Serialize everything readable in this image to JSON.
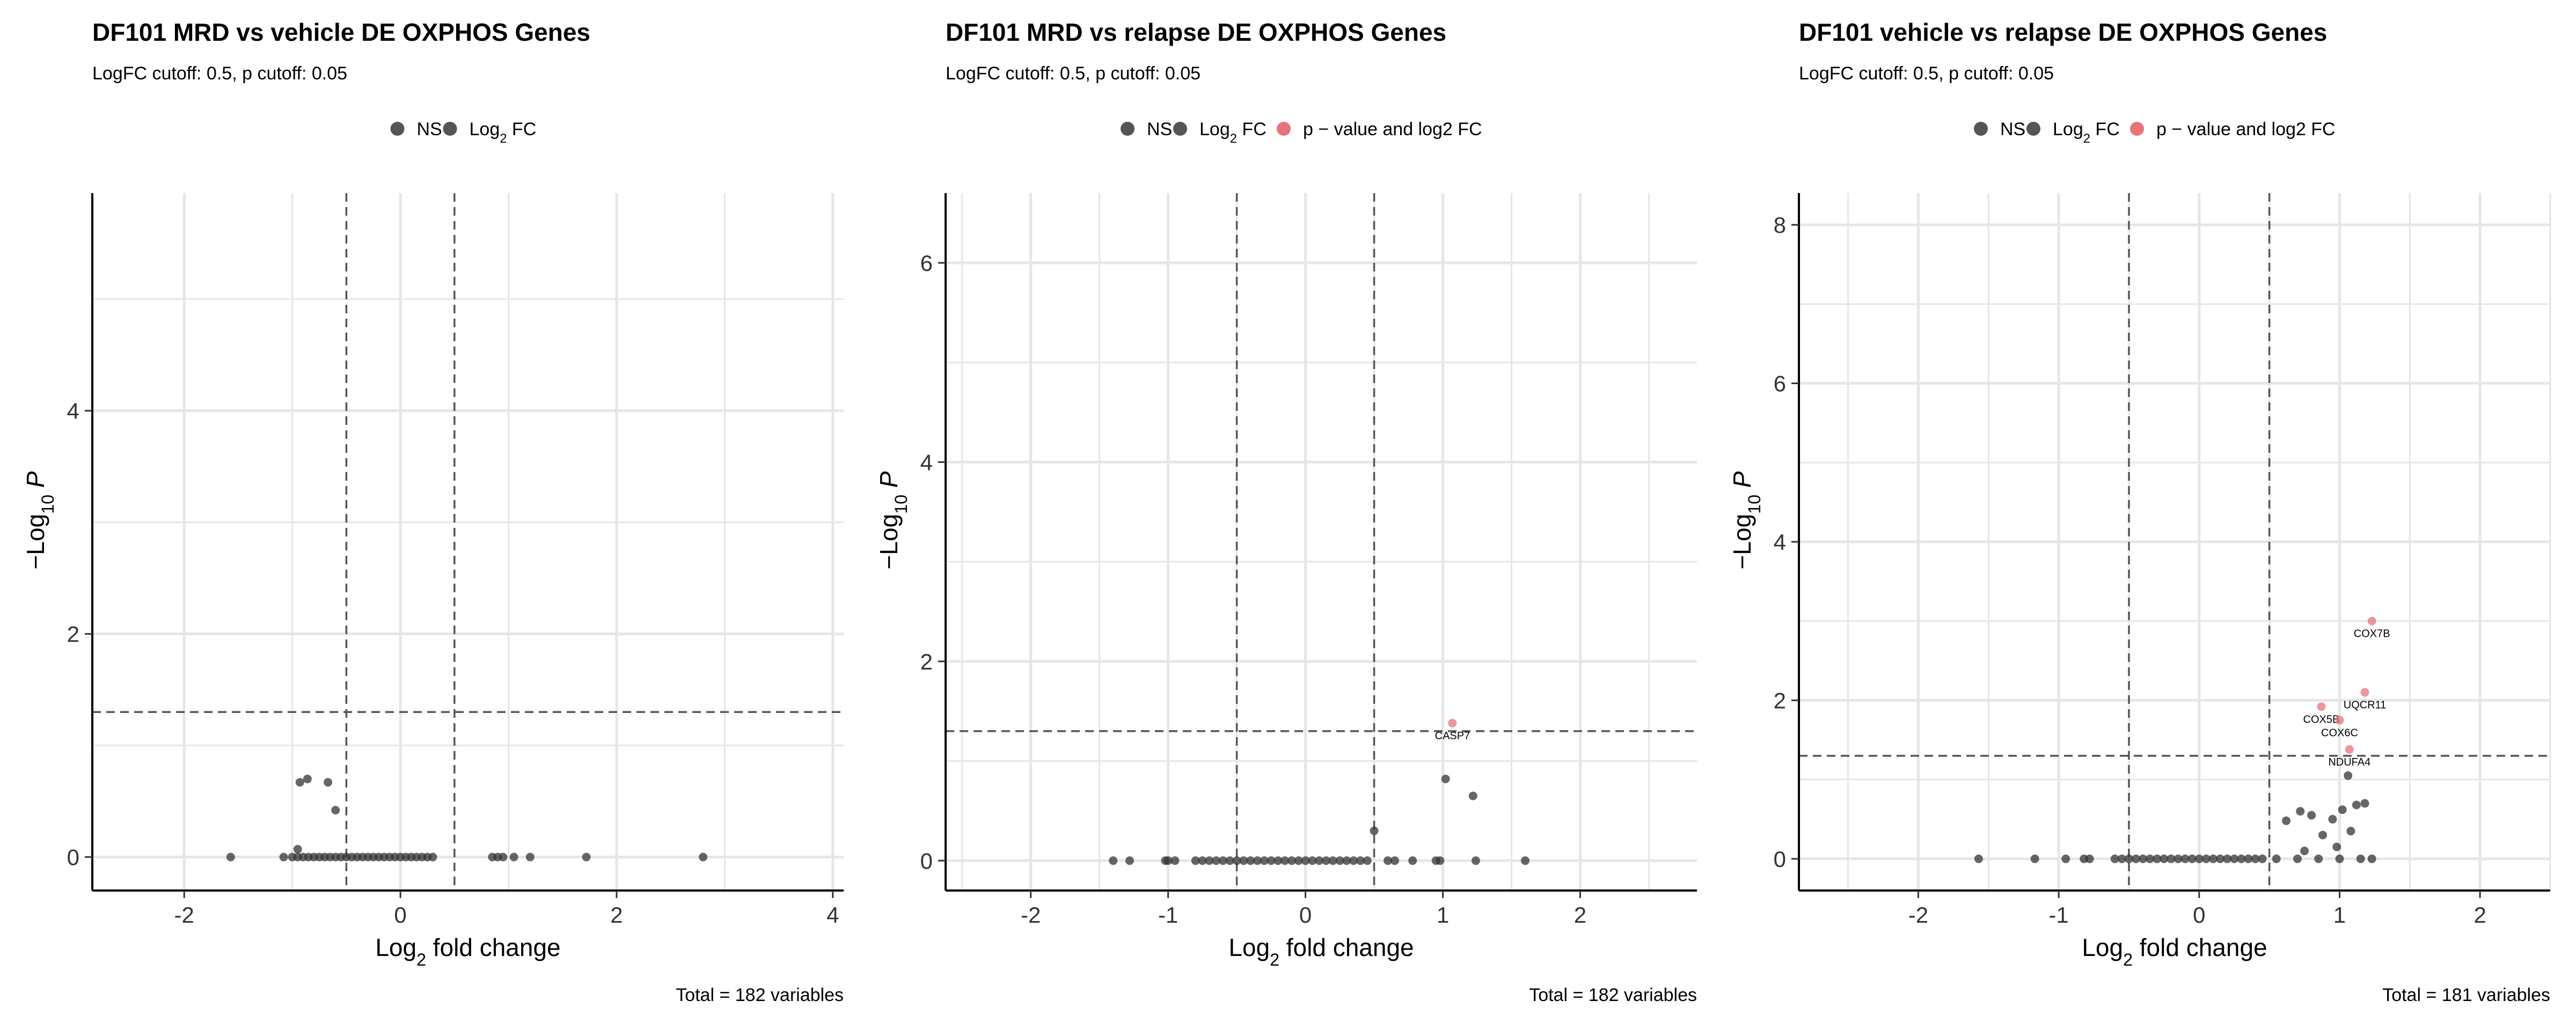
{
  "chart_data": [
    {
      "type": "scatter",
      "title": "DF101 MRD vs vehicle DE OXPHOS Genes",
      "subtitle": "LogFC cutoff: 0.5, p cutoff: 0.05",
      "xlabel": "Log2 fold change",
      "ylabel": "−Log10 P",
      "caption": "Total = 182 variables",
      "xlim": [
        -2.85,
        4.1
      ],
      "ylim": [
        -0.3,
        5.95
      ],
      "xticks": [
        -2,
        0,
        2,
        4
      ],
      "yticks": [
        0,
        2,
        4
      ],
      "fc_cutoff": 0.5,
      "p_cutoff_neglog10": 1.3,
      "grid": true,
      "legend_position": "top",
      "legend": [
        {
          "label": "NS",
          "color": "#555555"
        },
        {
          "label": "Log2 FC",
          "color": "#555555"
        }
      ],
      "series": [
        {
          "name": "NS",
          "color": "#333333",
          "points": [
            [
              -1.57,
              0
            ],
            [
              -1.08,
              0
            ],
            [
              -1.0,
              0
            ],
            [
              -0.95,
              0
            ],
            [
              -0.9,
              0
            ],
            [
              -0.85,
              0
            ],
            [
              -0.8,
              0
            ],
            [
              -0.75,
              0
            ],
            [
              -0.7,
              0
            ],
            [
              -0.65,
              0
            ],
            [
              -0.6,
              0
            ],
            [
              -0.55,
              0
            ],
            [
              -0.5,
              0
            ],
            [
              -0.45,
              0
            ],
            [
              -0.4,
              0
            ],
            [
              -0.35,
              0
            ],
            [
              -0.3,
              0
            ],
            [
              -0.25,
              0
            ],
            [
              -0.2,
              0
            ],
            [
              -0.15,
              0
            ],
            [
              -0.1,
              0
            ],
            [
              -0.05,
              0
            ],
            [
              0.0,
              0
            ],
            [
              0.05,
              0
            ],
            [
              0.1,
              0
            ],
            [
              0.15,
              0
            ],
            [
              0.2,
              0
            ],
            [
              0.25,
              0
            ],
            [
              0.3,
              0
            ],
            [
              -0.95,
              0.07
            ],
            [
              -0.93,
              0.67
            ],
            [
              -0.86,
              0.7
            ],
            [
              -0.67,
              0.67
            ],
            [
              -0.6,
              0.42
            ]
          ]
        },
        {
          "name": "Log2 FC",
          "color": "#333333",
          "points": [
            [
              0.85,
              0
            ],
            [
              0.9,
              0
            ],
            [
              0.95,
              0
            ],
            [
              1.05,
              0
            ],
            [
              1.2,
              0
            ],
            [
              1.72,
              0
            ],
            [
              2.8,
              0
            ]
          ]
        }
      ]
    },
    {
      "type": "scatter",
      "title": "DF101 MRD vs relapse DE OXPHOS Genes",
      "subtitle": "LogFC cutoff: 0.5, p cutoff: 0.05",
      "xlabel": "Log2 fold change",
      "ylabel": "−Log10 P",
      "caption": "Total = 182 variables",
      "xlim": [
        -2.62,
        2.85
      ],
      "ylim": [
        -0.3,
        6.7
      ],
      "xticks": [
        -2,
        -1,
        0,
        1,
        2
      ],
      "yticks": [
        0,
        2,
        4,
        6
      ],
      "fc_cutoff": 0.5,
      "p_cutoff_neglog10": 1.3,
      "grid": true,
      "legend_position": "top",
      "legend": [
        {
          "label": "NS",
          "color": "#555555"
        },
        {
          "label": "Log2 FC",
          "color": "#555555"
        },
        {
          "label": "p − value and log2 FC",
          "color": "#e8737b"
        }
      ],
      "series": [
        {
          "name": "NS",
          "color": "#333333",
          "points": [
            [
              -1.4,
              0
            ],
            [
              -1.28,
              0
            ],
            [
              -1.02,
              0
            ],
            [
              -1.0,
              0
            ],
            [
              -0.95,
              0
            ],
            [
              -0.8,
              0
            ],
            [
              -0.75,
              0
            ],
            [
              -0.7,
              0
            ],
            [
              -0.65,
              0
            ],
            [
              -0.6,
              0
            ],
            [
              -0.55,
              0
            ],
            [
              -0.5,
              0
            ],
            [
              -0.45,
              0
            ],
            [
              -0.4,
              0
            ],
            [
              -0.35,
              0
            ],
            [
              -0.3,
              0
            ],
            [
              -0.25,
              0
            ],
            [
              -0.2,
              0
            ],
            [
              -0.15,
              0
            ],
            [
              -0.1,
              0
            ],
            [
              -0.05,
              0
            ],
            [
              0.0,
              0
            ],
            [
              0.05,
              0
            ],
            [
              0.1,
              0
            ],
            [
              0.15,
              0
            ],
            [
              0.2,
              0
            ],
            [
              0.25,
              0
            ],
            [
              0.3,
              0
            ],
            [
              0.35,
              0
            ],
            [
              0.4,
              0
            ],
            [
              0.45,
              0
            ],
            [
              0.5,
              0.3
            ]
          ]
        },
        {
          "name": "Log2 FC",
          "color": "#333333",
          "points": [
            [
              0.6,
              0
            ],
            [
              0.65,
              0
            ],
            [
              0.78,
              0
            ],
            [
              0.95,
              0
            ],
            [
              0.98,
              0
            ],
            [
              1.02,
              0.82
            ],
            [
              1.22,
              0.65
            ],
            [
              1.24,
              0
            ],
            [
              1.6,
              0
            ]
          ]
        },
        {
          "name": "p − value and log2 FC",
          "color": "#e8737b",
          "points": [
            [
              1.07,
              1.38,
              "CASP7"
            ]
          ]
        }
      ]
    },
    {
      "type": "scatter",
      "title": "DF101 vehicle vs relapse DE OXPHOS Genes",
      "subtitle": "LogFC cutoff: 0.5, p cutoff: 0.05",
      "xlabel": "Log2 fold change",
      "ylabel": "−Log10 P",
      "caption": "Total = 181 variables",
      "xlim": [
        -2.85,
        2.5
      ],
      "ylim": [
        -0.4,
        8.4
      ],
      "xticks": [
        -2,
        -1,
        0,
        1,
        2
      ],
      "yticks": [
        0,
        2,
        4,
        6,
        8
      ],
      "fc_cutoff": 0.5,
      "p_cutoff_neglog10": 1.3,
      "grid": true,
      "legend_position": "top",
      "legend": [
        {
          "label": "NS",
          "color": "#555555"
        },
        {
          "label": "Log2 FC",
          "color": "#555555"
        },
        {
          "label": "p − value and log2 FC",
          "color": "#e8737b"
        }
      ],
      "series": [
        {
          "name": "NS",
          "color": "#333333",
          "points": [
            [
              -1.57,
              0
            ],
            [
              -1.17,
              0
            ],
            [
              -0.95,
              0
            ],
            [
              -0.82,
              0
            ],
            [
              -0.78,
              0
            ],
            [
              -0.6,
              0
            ],
            [
              -0.55,
              0
            ],
            [
              -0.5,
              0
            ],
            [
              -0.45,
              0
            ],
            [
              -0.4,
              0
            ],
            [
              -0.35,
              0
            ],
            [
              -0.3,
              0
            ],
            [
              -0.25,
              0
            ],
            [
              -0.2,
              0
            ],
            [
              -0.15,
              0
            ],
            [
              -0.1,
              0
            ],
            [
              -0.05,
              0
            ],
            [
              0.0,
              0
            ],
            [
              0.05,
              0
            ],
            [
              0.1,
              0
            ],
            [
              0.15,
              0
            ],
            [
              0.2,
              0
            ],
            [
              0.25,
              0
            ],
            [
              0.3,
              0
            ],
            [
              0.35,
              0
            ],
            [
              0.4,
              0
            ],
            [
              0.45,
              0
            ]
          ]
        },
        {
          "name": "Log2 FC",
          "color": "#333333",
          "points": [
            [
              0.55,
              0
            ],
            [
              0.62,
              0.48
            ],
            [
              0.72,
              0.6
            ],
            [
              0.8,
              0.55
            ],
            [
              0.88,
              0.3
            ],
            [
              0.95,
              0.5
            ],
            [
              0.98,
              0.15
            ],
            [
              1.02,
              0.62
            ],
            [
              1.06,
              1.05
            ],
            [
              1.08,
              0.35
            ],
            [
              1.12,
              0.68
            ],
            [
              1.15,
              0
            ],
            [
              1.18,
              0.7
            ],
            [
              1.23,
              0
            ],
            [
              0.7,
              0
            ],
            [
              0.75,
              0.1
            ],
            [
              0.85,
              0
            ],
            [
              1.0,
              0
            ]
          ]
        },
        {
          "name": "p − value and log2 FC",
          "color": "#e8737b",
          "points": [
            [
              1.23,
              3.0,
              "COX7B"
            ],
            [
              1.18,
              2.1,
              "UQCR11"
            ],
            [
              0.87,
              1.92,
              "COX5B"
            ],
            [
              1.07,
              1.38,
              "NDUFA4"
            ],
            [
              1.0,
              1.75,
              "COX6C"
            ]
          ]
        }
      ]
    }
  ]
}
